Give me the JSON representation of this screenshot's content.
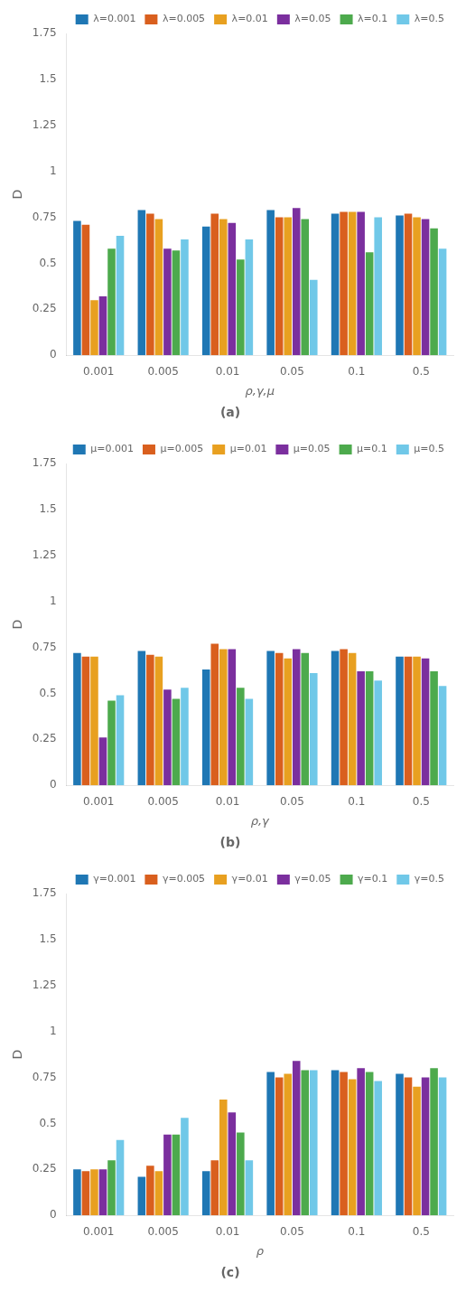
{
  "chart_data": [
    {
      "type": "bar",
      "title": "(a)",
      "xlabel": "ρ,γ,μ",
      "ylabel": "D",
      "categories": [
        "0.001",
        "0.005",
        "0.01",
        "0.05",
        "0.1",
        "0.5"
      ],
      "series": [
        {
          "name": "λ=0.001",
          "color": "#1f77b4",
          "values": [
            0.73,
            0.79,
            0.7,
            0.79,
            0.77,
            0.76
          ]
        },
        {
          "name": "λ=0.005",
          "color": "#d95f1e",
          "values": [
            0.71,
            0.77,
            0.77,
            0.75,
            0.78,
            0.77
          ]
        },
        {
          "name": "λ=0.01",
          "color": "#e8a020",
          "values": [
            0.3,
            0.74,
            0.74,
            0.75,
            0.78,
            0.75
          ]
        },
        {
          "name": "λ=0.05",
          "color": "#7b2f9e",
          "values": [
            0.32,
            0.58,
            0.72,
            0.8,
            0.78,
            0.74
          ]
        },
        {
          "name": "λ=0.1",
          "color": "#4daa4d",
          "values": [
            0.58,
            0.57,
            0.52,
            0.74,
            0.56,
            0.69
          ]
        },
        {
          "name": "λ=0.5",
          "color": "#70c8e8",
          "values": [
            0.65,
            0.63,
            0.63,
            0.41,
            0.75,
            0.58
          ]
        }
      ],
      "ylim": [
        0,
        1.75
      ],
      "yticks": [
        0,
        0.25,
        0.5,
        0.75,
        1,
        1.25,
        1.5,
        1.75
      ],
      "grid": false,
      "legend": "upper right"
    },
    {
      "type": "bar",
      "title": "(b)",
      "xlabel": "ρ,γ",
      "ylabel": "D",
      "categories": [
        "0.001",
        "0.005",
        "0.01",
        "0.05",
        "0.1",
        "0.5"
      ],
      "series": [
        {
          "name": "μ=0.001",
          "color": "#1f77b4",
          "values": [
            0.72,
            0.73,
            0.63,
            0.73,
            0.73,
            0.7
          ]
        },
        {
          "name": "μ=0.005",
          "color": "#d95f1e",
          "values": [
            0.7,
            0.71,
            0.77,
            0.72,
            0.74,
            0.7
          ]
        },
        {
          "name": "μ=0.01",
          "color": "#e8a020",
          "values": [
            0.7,
            0.7,
            0.74,
            0.69,
            0.72,
            0.7
          ]
        },
        {
          "name": "μ=0.05",
          "color": "#7b2f9e",
          "values": [
            0.26,
            0.52,
            0.74,
            0.74,
            0.62,
            0.69
          ]
        },
        {
          "name": "μ=0.1",
          "color": "#4daa4d",
          "values": [
            0.46,
            0.47,
            0.53,
            0.72,
            0.62,
            0.62
          ]
        },
        {
          "name": "μ=0.5",
          "color": "#70c8e8",
          "values": [
            0.49,
            0.53,
            0.47,
            0.61,
            0.57,
            0.54
          ]
        }
      ],
      "ylim": [
        0,
        1.75
      ],
      "yticks": [
        0,
        0.25,
        0.5,
        0.75,
        1,
        1.25,
        1.5,
        1.75
      ],
      "grid": false,
      "legend": "upper right"
    },
    {
      "type": "bar",
      "title": "(c)",
      "xlabel": "ρ",
      "ylabel": "D",
      "categories": [
        "0.001",
        "0.005",
        "0.01",
        "0.05",
        "0.1",
        "0.5"
      ],
      "series": [
        {
          "name": "γ=0.001",
          "color": "#1f77b4",
          "values": [
            0.25,
            0.21,
            0.24,
            0.78,
            0.79,
            0.77
          ]
        },
        {
          "name": "γ=0.005",
          "color": "#d95f1e",
          "values": [
            0.24,
            0.27,
            0.3,
            0.75,
            0.78,
            0.75
          ]
        },
        {
          "name": "γ=0.01",
          "color": "#e8a020",
          "values": [
            0.25,
            0.24,
            0.63,
            0.77,
            0.74,
            0.7
          ]
        },
        {
          "name": "γ=0.05",
          "color": "#7b2f9e",
          "values": [
            0.25,
            0.44,
            0.56,
            0.84,
            0.8,
            0.75
          ]
        },
        {
          "name": "γ=0.1",
          "color": "#4daa4d",
          "values": [
            0.3,
            0.44,
            0.45,
            0.79,
            0.78,
            0.8
          ]
        },
        {
          "name": "γ=0.5",
          "color": "#70c8e8",
          "values": [
            0.41,
            0.53,
            0.3,
            0.79,
            0.73,
            0.75
          ]
        }
      ],
      "ylim": [
        0,
        1.75
      ],
      "yticks": [
        0,
        0.25,
        0.5,
        0.75,
        1,
        1.25,
        1.5,
        1.75
      ],
      "grid": false,
      "legend": "upper right"
    }
  ]
}
